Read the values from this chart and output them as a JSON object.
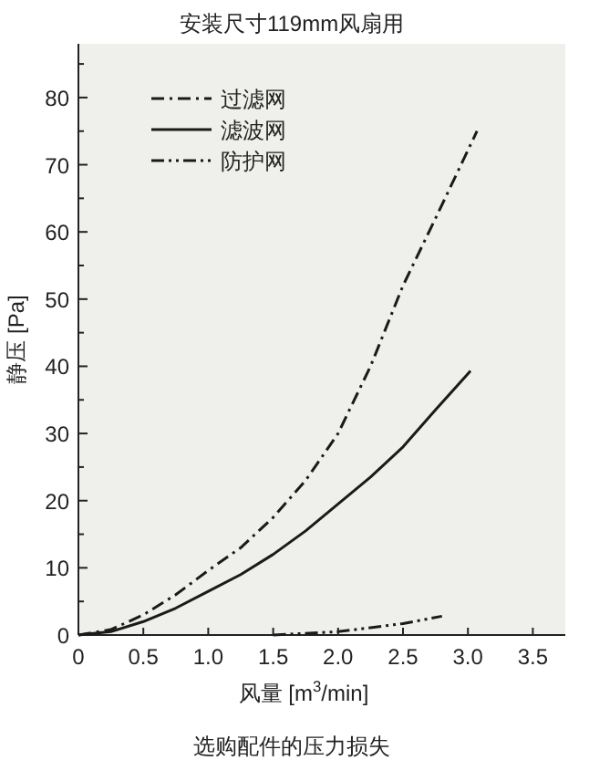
{
  "chart_data": {
    "type": "line",
    "title": "安装尺寸119mm风扇用",
    "xlabel": "风量 [m$^{3}$/min]",
    "ylabel": "静压 [Pa]",
    "annotations": [
      "选购配件的压力损失"
    ],
    "xlim": [
      0,
      3.75
    ],
    "ylim": [
      0,
      88
    ],
    "xticks": [
      {
        "value": 0,
        "label": "0"
      },
      0.5,
      {
        "value": 1,
        "label": "1.0"
      },
      1.5,
      {
        "value": 2,
        "label": "2.0"
      },
      2.5,
      {
        "value": 3,
        "label": "3.0"
      },
      3.5
    ],
    "yticks": [
      0,
      {
        "value": 5,
        "label": null
      },
      10,
      {
        "value": 15,
        "label": null
      },
      20,
      {
        "value": 25,
        "label": null
      },
      30,
      {
        "value": 35,
        "label": null
      },
      40,
      {
        "value": 45,
        "label": null
      },
      50,
      {
        "value": 55,
        "label": null
      },
      60,
      {
        "value": 65,
        "label": null
      },
      70,
      {
        "value": 75,
        "label": null
      },
      80,
      {
        "value": 85,
        "label": null
      }
    ],
    "grid": false,
    "legend": "top left",
    "marker": "none",
    "series": [
      {
        "name": "过滤网",
        "color": "#1a1a1a",
        "line_style": "dashdot",
        "x": [
          0,
          0.25,
          0.5,
          0.75,
          1.0,
          1.25,
          1.5,
          1.75,
          2.0,
          2.25,
          2.5,
          2.75,
          3.07
        ],
        "values": [
          0,
          0.8,
          3,
          6,
          9.6,
          13,
          17.5,
          23,
          30,
          40,
          52,
          62,
          75
        ]
      },
      {
        "name": "滤波网",
        "color": "#1a1a1a",
        "line_style": "solid",
        "x": [
          0,
          0.25,
          0.5,
          0.75,
          1.0,
          1.25,
          1.5,
          1.75,
          2.0,
          2.25,
          2.5,
          2.75,
          3.02
        ],
        "values": [
          0,
          0.5,
          2,
          4,
          6.5,
          9,
          12,
          15.5,
          19.5,
          23.5,
          28,
          33.5,
          39.3
        ]
      },
      {
        "name": "防护网",
        "color": "#1a1a1a",
        "line_style": "dashdotdot",
        "x": [
          1.5,
          2.0,
          2.5,
          2.8
        ],
        "values": [
          0,
          0.5,
          1.7,
          2.8
        ]
      }
    ]
  }
}
